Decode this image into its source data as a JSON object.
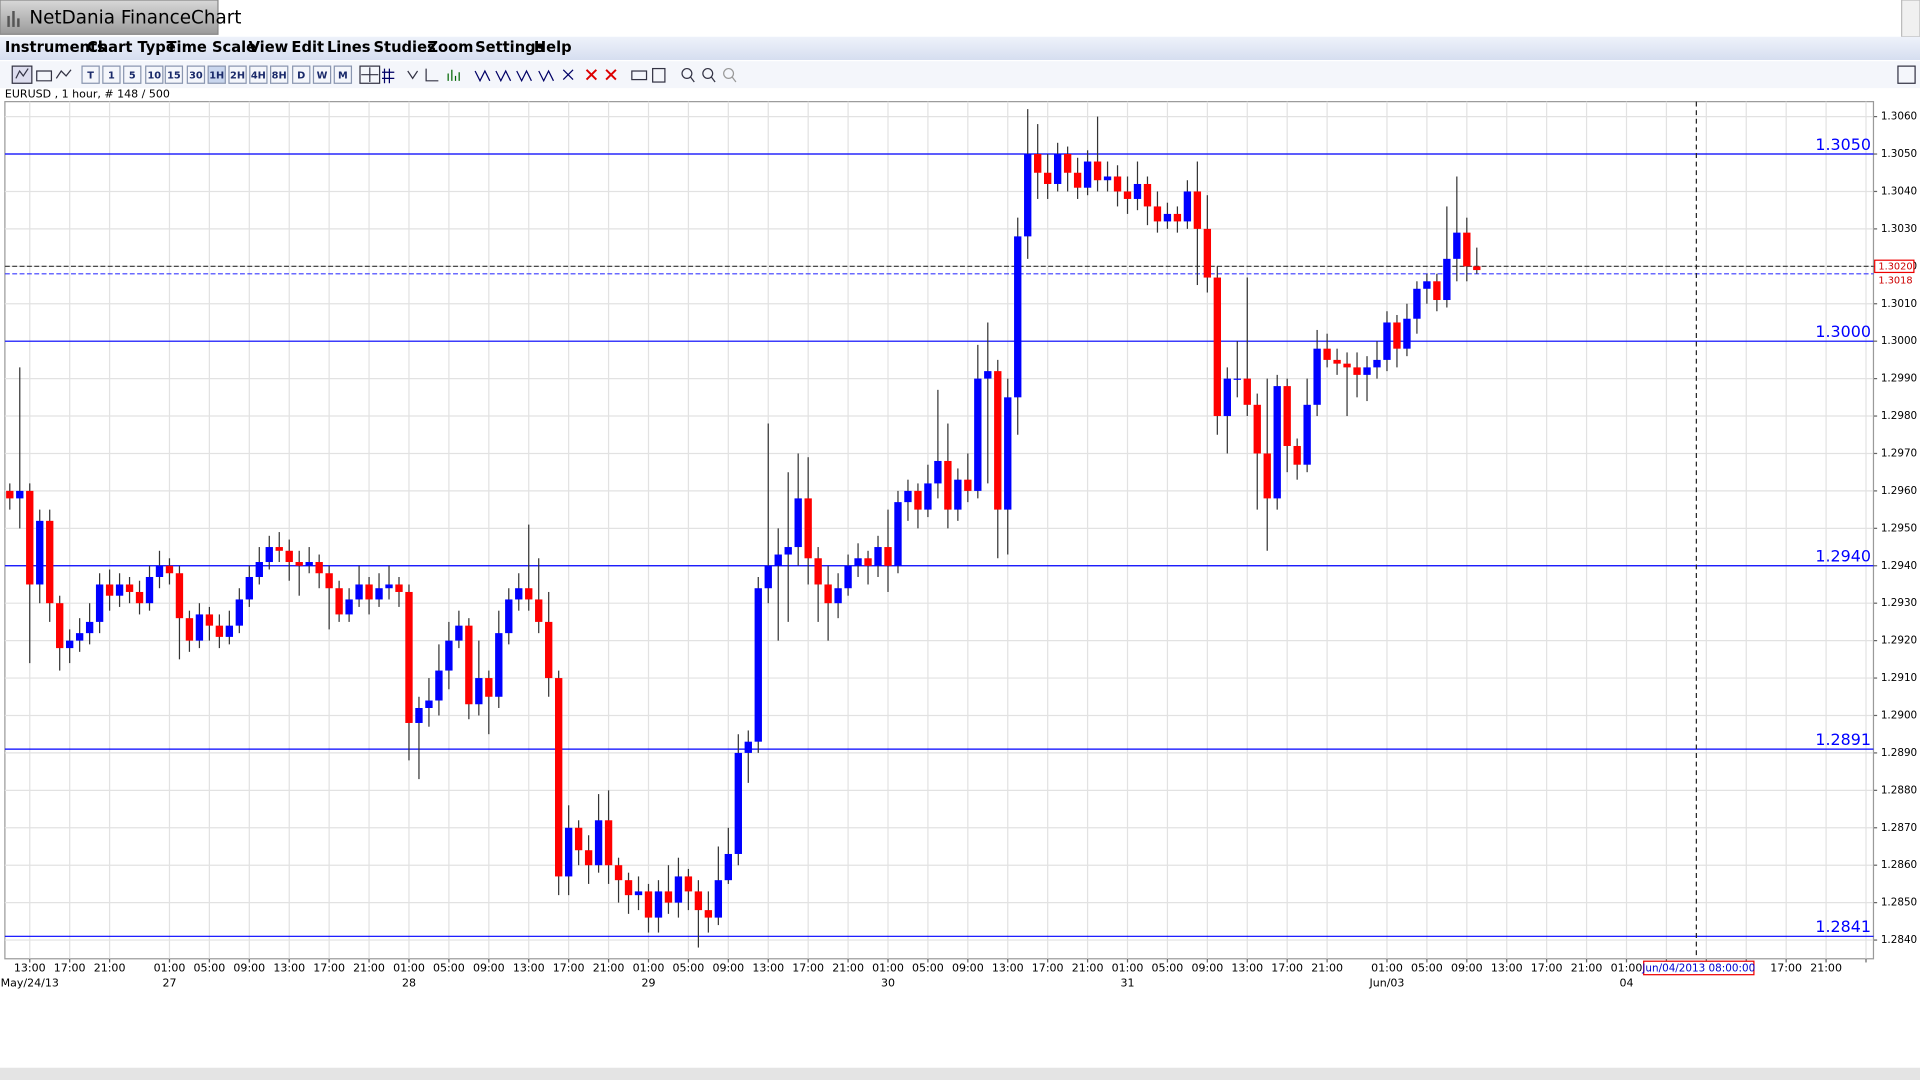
{
  "app_title": "NetDania FinanceChart",
  "menu": [
    "Instruments",
    "Chart Type",
    "Time Scale",
    "View",
    "Edit",
    "Lines",
    "Studies",
    "Zoom",
    "Settings",
    "Help"
  ],
  "toolbar": [
    "T",
    "1",
    "5",
    "10",
    "15",
    "30",
    "1H",
    "2H",
    "4H",
    "8H",
    "D",
    "W",
    "M"
  ],
  "instrument_label": "EURUSD , 1 hour, # 148 / 500",
  "chart_data": {
    "type": "candlestick",
    "up_color": "#0000ff",
    "down_color": "#ff0000",
    "grid": true,
    "categories": [
      null,
      null,
      "13:00",
      null,
      null,
      null,
      "17:00",
      null,
      null,
      null,
      "21:00",
      null,
      null,
      null,
      null,
      null,
      "01:00",
      null,
      null,
      null,
      "05:00",
      null,
      null,
      null,
      "09:00",
      null,
      null,
      null,
      "13:00",
      null,
      null,
      null,
      "17:00",
      null,
      null,
      null,
      "21:00",
      null,
      null,
      null,
      "01:00",
      null,
      null,
      null,
      "05:00",
      null,
      null,
      null,
      "09:00",
      null,
      null,
      null,
      "13:00",
      null,
      null,
      null,
      "17:00",
      null,
      null,
      null,
      "21:00",
      null,
      null,
      null,
      "01:00",
      null,
      null,
      null,
      "05:00",
      null,
      null,
      null,
      "09:00",
      null,
      null,
      null,
      "13:00",
      null,
      null,
      null,
      "17:00",
      null,
      null,
      null,
      "21:00",
      null,
      null,
      null,
      "01:00",
      null,
      null,
      null,
      "05:00",
      null,
      null,
      null,
      "09:00",
      null,
      null,
      null,
      "13:00",
      null,
      null,
      null,
      "17:00",
      null,
      null,
      null,
      "21:00",
      null,
      null,
      null,
      "01:00",
      null,
      null,
      null,
      "05:00",
      null,
      null,
      null,
      "09:00",
      null,
      null,
      null,
      "13:00",
      null,
      null,
      null,
      "17:00",
      null,
      null,
      null,
      "21:00",
      null,
      null,
      null,
      null,
      null,
      "01:00",
      null,
      null,
      null,
      "05:00",
      null,
      null,
      null,
      "09:00",
      null,
      null,
      null,
      "13:00",
      null,
      null,
      null,
      "17:00",
      null,
      null,
      null,
      "21:00",
      null,
      null,
      null,
      "01:00",
      null,
      null,
      null,
      null,
      null,
      null,
      null,
      null,
      null,
      null,
      null,
      null,
      null,
      null,
      null,
      "17:00",
      null,
      null,
      null,
      "21:00",
      null,
      null,
      null,
      null
    ],
    "dates": [
      null,
      null,
      "May/24/13",
      null,
      null,
      null,
      null,
      null,
      null,
      null,
      null,
      null,
      null,
      null,
      null,
      null,
      "27",
      null,
      null,
      null,
      null,
      null,
      null,
      null,
      null,
      null,
      null,
      null,
      null,
      null,
      null,
      null,
      null,
      null,
      null,
      null,
      null,
      null,
      null,
      null,
      "28",
      null,
      null,
      null,
      null,
      null,
      null,
      null,
      null,
      null,
      null,
      null,
      null,
      null,
      null,
      null,
      null,
      null,
      null,
      null,
      null,
      null,
      null,
      null,
      "29",
      null,
      null,
      null,
      null,
      null,
      null,
      null,
      null,
      null,
      null,
      null,
      null,
      null,
      null,
      null,
      null,
      null,
      null,
      null,
      null,
      null,
      null,
      null,
      "30",
      null,
      null,
      null,
      null,
      null,
      null,
      null,
      null,
      null,
      null,
      null,
      null,
      null,
      null,
      null,
      null,
      null,
      null,
      null,
      null,
      null,
      null,
      null,
      "31",
      null,
      null,
      null,
      null,
      null,
      null,
      null,
      null,
      null,
      null,
      null,
      null,
      null,
      null,
      null,
      null,
      null,
      null,
      null,
      null,
      null,
      null,
      null,
      null,
      null,
      "Jun/03",
      null,
      null,
      null,
      null,
      null,
      null,
      null,
      null,
      null,
      null,
      null,
      null,
      null,
      null,
      null,
      null,
      null,
      null,
      null,
      null,
      null,
      null,
      null,
      "04",
      null,
      null,
      null,
      null,
      null,
      null,
      null,
      null,
      null,
      null,
      null,
      null,
      null,
      null,
      null,
      null,
      null,
      null,
      null,
      null,
      null,
      null,
      null,
      null
    ],
    "open": [
      1.296,
      1.2958,
      1.296,
      1.2935,
      1.2952,
      1.293,
      1.2918,
      1.292,
      1.2922,
      1.2925,
      1.2935,
      1.2932,
      1.2935,
      1.2933,
      1.293,
      1.2937,
      1.294,
      1.2938,
      1.2926,
      1.292,
      1.2927,
      1.2924,
      1.2921,
      1.2924,
      1.2931,
      1.2937,
      1.2941,
      1.2945,
      1.2944,
      1.2941,
      1.294,
      1.2941,
      1.2938,
      1.2934,
      1.2927,
      1.2931,
      1.2935,
      1.2931,
      1.2934,
      1.2935,
      1.2933,
      1.2898,
      1.2902,
      1.2904,
      1.2912,
      1.292,
      1.2924,
      1.2903,
      1.291,
      1.2905,
      1.2922,
      1.2931,
      1.2934,
      1.2931,
      1.2925,
      1.291,
      1.2857,
      1.287,
      1.2864,
      1.286,
      1.2872,
      1.286,
      1.2856,
      1.2852,
      1.2853,
      1.2846,
      1.2853,
      1.285,
      1.2857,
      1.2853,
      1.2848,
      1.2846,
      1.2856,
      1.2863,
      1.289,
      1.2893,
      1.2934,
      1.294,
      1.2943,
      1.2945,
      1.2958,
      1.2942,
      1.2935,
      1.293,
      1.2934,
      1.294,
      1.2942,
      1.294,
      1.2945,
      1.294,
      1.2957,
      1.296,
      1.2955,
      1.2962,
      1.2968,
      1.2955,
      1.2963,
      1.296,
      1.299,
      1.2992,
      1.2955,
      1.2985,
      1.3028,
      1.305,
      1.3045,
      1.3042,
      1.305,
      1.3045,
      1.3041,
      1.3048,
      1.3043,
      1.3044,
      1.304,
      1.3038,
      1.3042,
      1.3036,
      1.3032,
      1.3034,
      1.3032,
      1.304,
      1.303,
      1.3017,
      1.298,
      1.299,
      1.299,
      1.2983,
      1.297,
      1.2958,
      1.2988,
      1.2972,
      1.2967,
      1.2983,
      1.2998,
      1.2995,
      1.2994,
      1.2993,
      1.2991,
      1.2993,
      1.2995,
      1.3005,
      1.2998,
      1.3006,
      1.3014,
      1.3016,
      1.3011,
      1.3022,
      1.3029,
      1.302,
      null,
      null,
      null,
      null,
      null,
      null,
      null,
      null,
      null,
      null,
      null,
      null,
      null,
      null,
      null,
      null,
      null,
      null,
      null,
      null,
      null,
      null,
      null,
      null,
      null,
      null,
      null,
      null,
      null,
      null,
      null,
      null,
      null,
      null,
      null,
      null,
      null,
      null,
      null
    ],
    "high": [
      1.2962,
      1.2993,
      1.2962,
      1.2955,
      1.2955,
      1.2932,
      1.2923,
      1.2926,
      1.293,
      1.2938,
      1.2939,
      1.2938,
      1.2937,
      1.2936,
      1.294,
      1.2944,
      1.2942,
      1.294,
      1.2928,
      1.293,
      1.2929,
      1.2927,
      1.2928,
      1.2934,
      1.294,
      1.2945,
      1.2948,
      1.2949,
      1.2947,
      1.2944,
      1.2945,
      1.2943,
      1.294,
      1.2936,
      1.2934,
      1.294,
      1.2937,
      1.2938,
      1.294,
      1.2937,
      1.2935,
      1.2905,
      1.291,
      1.2919,
      1.2925,
      1.2928,
      1.2926,
      1.292,
      1.2912,
      1.2928,
      1.2934,
      1.2938,
      1.2951,
      1.2942,
      1.2933,
      1.2912,
      1.2876,
      1.2872,
      1.2868,
      1.2879,
      1.288,
      1.2862,
      1.2858,
      1.2857,
      1.2855,
      1.2856,
      1.286,
      1.2862,
      1.2859,
      1.2856,
      1.2853,
      1.2865,
      1.287,
      1.2895,
      1.2896,
      1.2937,
      1.2978,
      1.295,
      1.2965,
      1.297,
      1.2969,
      1.2945,
      1.294,
      1.2938,
      1.2943,
      1.2946,
      1.2944,
      1.2948,
      1.2955,
      1.296,
      1.2963,
      1.2962,
      1.2967,
      1.2987,
      1.2978,
      1.2966,
      1.297,
      1.2999,
      1.3005,
      1.2995,
      1.299,
      1.3033,
      1.3062,
      1.3058,
      1.305,
      1.3053,
      1.3052,
      1.3049,
      1.3051,
      1.306,
      1.3048,
      1.3047,
      1.3044,
      1.3048,
      1.3044,
      1.304,
      1.3037,
      1.3036,
      1.3043,
      1.3048,
      1.3039,
      1.302,
      1.2993,
      1.3,
      1.3017,
      1.2986,
      1.299,
      1.2991,
      1.299,
      1.2974,
      1.299,
      1.3003,
      1.3002,
      1.2998,
      1.2997,
      1.2997,
      1.2996,
      1.3,
      1.3008,
      1.3007,
      1.301,
      1.3016,
      1.3018,
      1.3018,
      1.3036,
      1.3044,
      1.3033,
      1.3025,
      null,
      null,
      null,
      null,
      null,
      null,
      null,
      null,
      null,
      null,
      null,
      null,
      null,
      null,
      null,
      null,
      null,
      null,
      null,
      null,
      null,
      null,
      null,
      null,
      null,
      null,
      null,
      null,
      null,
      null,
      null,
      null,
      null,
      null,
      null,
      null,
      null,
      null,
      null
    ],
    "low": [
      1.2955,
      1.295,
      1.2914,
      1.293,
      1.2925,
      1.2912,
      1.2914,
      1.2917,
      1.2919,
      1.2922,
      1.2928,
      1.2929,
      1.293,
      1.2927,
      1.2928,
      1.2934,
      1.2935,
      1.2915,
      1.2917,
      1.2918,
      1.292,
      1.2918,
      1.2919,
      1.2922,
      1.2929,
      1.2935,
      1.2939,
      1.2941,
      1.2936,
      1.2932,
      1.2938,
      1.2934,
      1.2923,
      1.2925,
      1.2925,
      1.2929,
      1.2927,
      1.2929,
      1.2931,
      1.2929,
      1.2888,
      1.2883,
      1.2897,
      1.29,
      1.2907,
      1.2918,
      1.2899,
      1.29,
      1.2895,
      1.2902,
      1.2919,
      1.2928,
      1.2928,
      1.2922,
      1.2905,
      1.2852,
      1.2852,
      1.286,
      1.2855,
      1.2858,
      1.2855,
      1.285,
      1.2847,
      1.2848,
      1.2842,
      1.2842,
      1.2847,
      1.2846,
      1.2848,
      1.2838,
      1.2842,
      1.2844,
      1.2855,
      1.286,
      1.2882,
      1.289,
      1.293,
      1.292,
      1.2925,
      1.294,
      1.2935,
      1.2925,
      1.292,
      1.2926,
      1.2932,
      1.2937,
      1.2935,
      1.2937,
      1.2933,
      1.2938,
      1.2952,
      1.295,
      1.2953,
      1.2958,
      1.295,
      1.2952,
      1.2957,
      1.2958,
      1.2962,
      1.2942,
      1.2943,
      1.2975,
      1.3022,
      1.3038,
      1.3038,
      1.304,
      1.304,
      1.3038,
      1.3039,
      1.304,
      1.304,
      1.3036,
      1.3034,
      1.3035,
      1.3031,
      1.3029,
      1.303,
      1.3029,
      1.303,
      1.3015,
      1.3013,
      1.2975,
      1.297,
      1.2985,
      1.298,
      1.2955,
      1.2944,
      1.2955,
      1.2965,
      1.2963,
      1.2965,
      1.298,
      1.2993,
      1.2991,
      1.298,
      1.2985,
      1.2984,
      1.299,
      1.2992,
      1.2993,
      1.2996,
      1.3002,
      1.301,
      1.3008,
      1.3009,
      1.3016,
      1.3016,
      1.3018,
      null,
      null,
      null,
      null,
      null,
      null,
      null,
      null,
      null,
      null,
      null,
      null,
      null,
      null,
      null,
      null,
      null,
      null,
      null,
      null,
      null,
      null,
      null,
      null,
      null,
      null,
      null,
      null,
      null,
      null,
      null,
      null,
      null,
      null,
      null,
      null,
      null,
      null,
      null
    ],
    "close": [
      1.2958,
      1.296,
      1.2935,
      1.2952,
      1.293,
      1.2918,
      1.292,
      1.2922,
      1.2925,
      1.2935,
      1.2932,
      1.2935,
      1.2933,
      1.293,
      1.2937,
      1.294,
      1.2938,
      1.2926,
      1.292,
      1.2927,
      1.2924,
      1.2921,
      1.2924,
      1.2931,
      1.2937,
      1.2941,
      1.2945,
      1.2944,
      1.2941,
      1.294,
      1.2941,
      1.2938,
      1.2934,
      1.2927,
      1.2931,
      1.2935,
      1.2931,
      1.2934,
      1.2935,
      1.2933,
      1.2898,
      1.2902,
      1.2904,
      1.2912,
      1.292,
      1.2924,
      1.2903,
      1.291,
      1.2905,
      1.2922,
      1.2931,
      1.2934,
      1.2931,
      1.2925,
      1.291,
      1.2857,
      1.287,
      1.2864,
      1.286,
      1.2872,
      1.286,
      1.2856,
      1.2852,
      1.2853,
      1.2846,
      1.2853,
      1.285,
      1.2857,
      1.2853,
      1.2848,
      1.2846,
      1.2856,
      1.2863,
      1.289,
      1.2893,
      1.2934,
      1.294,
      1.2943,
      1.2945,
      1.2958,
      1.2942,
      1.2935,
      1.293,
      1.2934,
      1.294,
      1.2942,
      1.294,
      1.2945,
      1.294,
      1.2957,
      1.296,
      1.2955,
      1.2962,
      1.2968,
      1.2955,
      1.2963,
      1.296,
      1.299,
      1.2992,
      1.2955,
      1.2985,
      1.3028,
      1.305,
      1.3045,
      1.3042,
      1.305,
      1.3045,
      1.3041,
      1.3048,
      1.3043,
      1.3044,
      1.304,
      1.3038,
      1.3042,
      1.3036,
      1.3032,
      1.3034,
      1.3032,
      1.304,
      1.303,
      1.3017,
      1.298,
      1.299,
      1.299,
      1.2983,
      1.297,
      1.2958,
      1.2988,
      1.2972,
      1.2967,
      1.2983,
      1.2998,
      1.2995,
      1.2994,
      1.2993,
      1.2991,
      1.2993,
      1.2995,
      1.3005,
      1.2998,
      1.3006,
      1.3014,
      1.3016,
      1.3011,
      1.3022,
      1.3029,
      1.302,
      1.3019,
      null,
      null,
      null,
      null,
      null,
      null,
      null,
      null,
      null,
      null,
      null,
      null,
      null,
      null,
      null,
      null,
      null,
      null,
      null,
      null,
      null,
      null,
      null,
      null,
      null,
      null,
      null,
      null,
      null,
      null,
      null,
      null,
      null,
      null,
      null,
      null,
      null,
      null,
      null
    ],
    "ylim": [
      1.2835,
      1.3064
    ],
    "yticks": [
      {
        "value": 1.284,
        "label": "1.2840"
      },
      {
        "value": 1.285,
        "label": "1.2850"
      },
      {
        "value": 1.286,
        "label": "1.2860"
      },
      {
        "value": 1.287,
        "label": "1.2870"
      },
      {
        "value": 1.288,
        "label": "1.2880"
      },
      {
        "value": 1.289,
        "label": "1.2890"
      },
      {
        "value": 1.29,
        "label": "1.2900"
      },
      {
        "value": 1.291,
        "label": "1.2910"
      },
      {
        "value": 1.292,
        "label": "1.2920"
      },
      {
        "value": 1.293,
        "label": "1.2930"
      },
      {
        "value": 1.294,
        "label": "1.2940"
      },
      {
        "value": 1.295,
        "label": "1.2950"
      },
      {
        "value": 1.296,
        "label": "1.2960"
      },
      {
        "value": 1.297,
        "label": "1.2970"
      },
      {
        "value": 1.298,
        "label": "1.2980"
      },
      {
        "value": 1.299,
        "label": "1.2990"
      },
      {
        "value": 1.3,
        "label": "1.3000"
      },
      {
        "value": 1.301,
        "label": "1.3010"
      },
      {
        "value": 1.302,
        "label": "1.3020"
      },
      {
        "value": 1.303,
        "label": "1.3030"
      },
      {
        "value": 1.304,
        "label": "1.3040"
      },
      {
        "value": 1.305,
        "label": "1.3050"
      },
      {
        "value": 1.306,
        "label": "1.3060"
      }
    ],
    "levels": [
      {
        "value": 1.305,
        "label": "1.3050"
      },
      {
        "value": 1.3,
        "label": "1.3000"
      },
      {
        "value": 1.294,
        "label": "1.2940"
      },
      1.2891,
      1.2841
    ],
    "level_color": "#0000ff",
    "cursor_price": {
      "value": 1.302,
      "label": "1.3020"
    },
    "last_price": {
      "value": 1.3018,
      "label": "1.3018"
    },
    "cursor_time": "Jun/04/2013 08:00:00"
  }
}
